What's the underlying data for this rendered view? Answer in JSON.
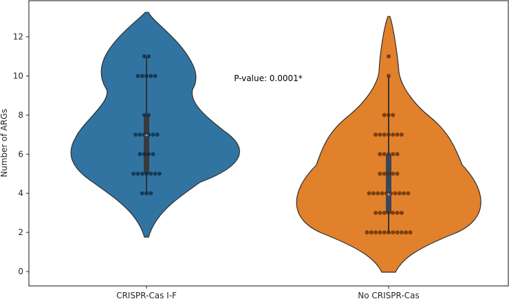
{
  "chart_data": {
    "type": "violin",
    "title": "",
    "xlabel": "",
    "ylabel": "Number of ARGs",
    "ylim": [
      -0.75,
      13.8
    ],
    "yticks": [
      0,
      2,
      4,
      6,
      8,
      10,
      12
    ],
    "grid": false,
    "legend": null,
    "categories": [
      "CRISPR-Cas I-F",
      "No CRISPR-Cas"
    ],
    "series": [
      {
        "name": "CRISPR-Cas I-F",
        "color": "#3274a1",
        "swarm_color": "#0b2a40",
        "value_counts": [
          {
            "value": 4,
            "count": 3
          },
          {
            "value": 5,
            "count": 7
          },
          {
            "value": 6,
            "count": 4
          },
          {
            "value": 7,
            "count": 6
          },
          {
            "value": 8,
            "count": 2
          },
          {
            "value": 10,
            "count": 5
          },
          {
            "value": 11,
            "count": 2
          }
        ],
        "median": 7,
        "q1": 5,
        "q3": 8,
        "whisker_low": 4,
        "whisker_high": 11,
        "kde_extent": [
          1.7,
          13.3
        ]
      },
      {
        "name": "No CRISPR-Cas",
        "color": "#e1812c",
        "swarm_color": "#5a2a05",
        "value_counts": [
          {
            "value": 2,
            "count": 11
          },
          {
            "value": 3,
            "count": 7
          },
          {
            "value": 4,
            "count": 10
          },
          {
            "value": 5,
            "count": 5
          },
          {
            "value": 6,
            "count": 5
          },
          {
            "value": 7,
            "count": 7
          },
          {
            "value": 8,
            "count": 3
          },
          {
            "value": 10,
            "count": 1
          },
          {
            "value": 11,
            "count": 1
          }
        ],
        "median": 4,
        "q1": 3,
        "q3": 6,
        "whisker_low": 2,
        "whisker_high": 10,
        "kde_extent": [
          -0.1,
          13.1
        ]
      }
    ],
    "annotations": [
      {
        "text": "P-value: 0.0001*",
        "x": 0.5,
        "y": 9.9
      }
    ]
  }
}
